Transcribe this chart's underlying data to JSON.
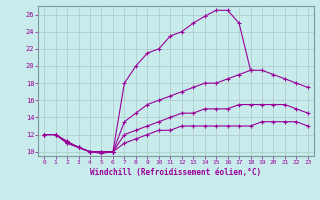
{
  "xlabel": "Windchill (Refroidissement éolien,°C)",
  "background_color": "#c8ecec",
  "line_color": "#990099",
  "grid_color": "#b0c8c8",
  "xlim": [
    -0.5,
    23.5
  ],
  "ylim": [
    9.5,
    27
  ],
  "xticks": [
    0,
    1,
    2,
    3,
    4,
    5,
    6,
    7,
    8,
    9,
    10,
    11,
    12,
    13,
    14,
    15,
    16,
    17,
    18,
    19,
    20,
    21,
    22,
    23
  ],
  "yticks": [
    10,
    12,
    14,
    16,
    18,
    20,
    22,
    24,
    26
  ],
  "curves": [
    {
      "x": [
        0,
        1,
        2,
        3,
        4,
        5,
        6,
        7,
        8,
        9,
        10,
        11,
        12,
        13,
        14,
        15,
        16,
        17,
        18
      ],
      "y": [
        12,
        12,
        11.2,
        10.5,
        10,
        10,
        10,
        18,
        20,
        21.5,
        22,
        23.5,
        24,
        25,
        25.8,
        26.5,
        26.5,
        25,
        19.5
      ]
    },
    {
      "x": [
        0,
        1,
        2,
        3,
        4,
        5,
        6,
        7,
        8,
        9,
        10,
        11,
        12,
        13,
        14,
        15,
        16,
        17,
        18,
        19,
        20,
        21,
        22,
        23
      ],
      "y": [
        12,
        12,
        11.2,
        10.5,
        10,
        10,
        10,
        13.5,
        14.5,
        15.5,
        16,
        16.5,
        17,
        17.5,
        18,
        18,
        18.5,
        19,
        19.5,
        19.5,
        19,
        18.5,
        18,
        17.5
      ]
    },
    {
      "x": [
        0,
        1,
        2,
        3,
        4,
        5,
        6,
        7,
        8,
        9,
        10,
        11,
        12,
        13,
        14,
        15,
        16,
        17,
        18,
        19,
        20,
        21,
        22,
        23
      ],
      "y": [
        12,
        12,
        11,
        10.5,
        10,
        10,
        10,
        12,
        12.5,
        13,
        13.5,
        14,
        14.5,
        14.5,
        15,
        15,
        15,
        15.5,
        15.5,
        15.5,
        15.5,
        15.5,
        15,
        14.5
      ]
    },
    {
      "x": [
        0,
        1,
        2,
        3,
        4,
        5,
        6,
        7,
        8,
        9,
        10,
        11,
        12,
        13,
        14,
        15,
        16,
        17,
        18,
        19,
        20,
        21,
        22,
        23
      ],
      "y": [
        12,
        12,
        11,
        10.5,
        10,
        9.8,
        10,
        11,
        11.5,
        12,
        12.5,
        12.5,
        13,
        13,
        13,
        13,
        13,
        13,
        13,
        13.5,
        13.5,
        13.5,
        13.5,
        13
      ]
    }
  ]
}
